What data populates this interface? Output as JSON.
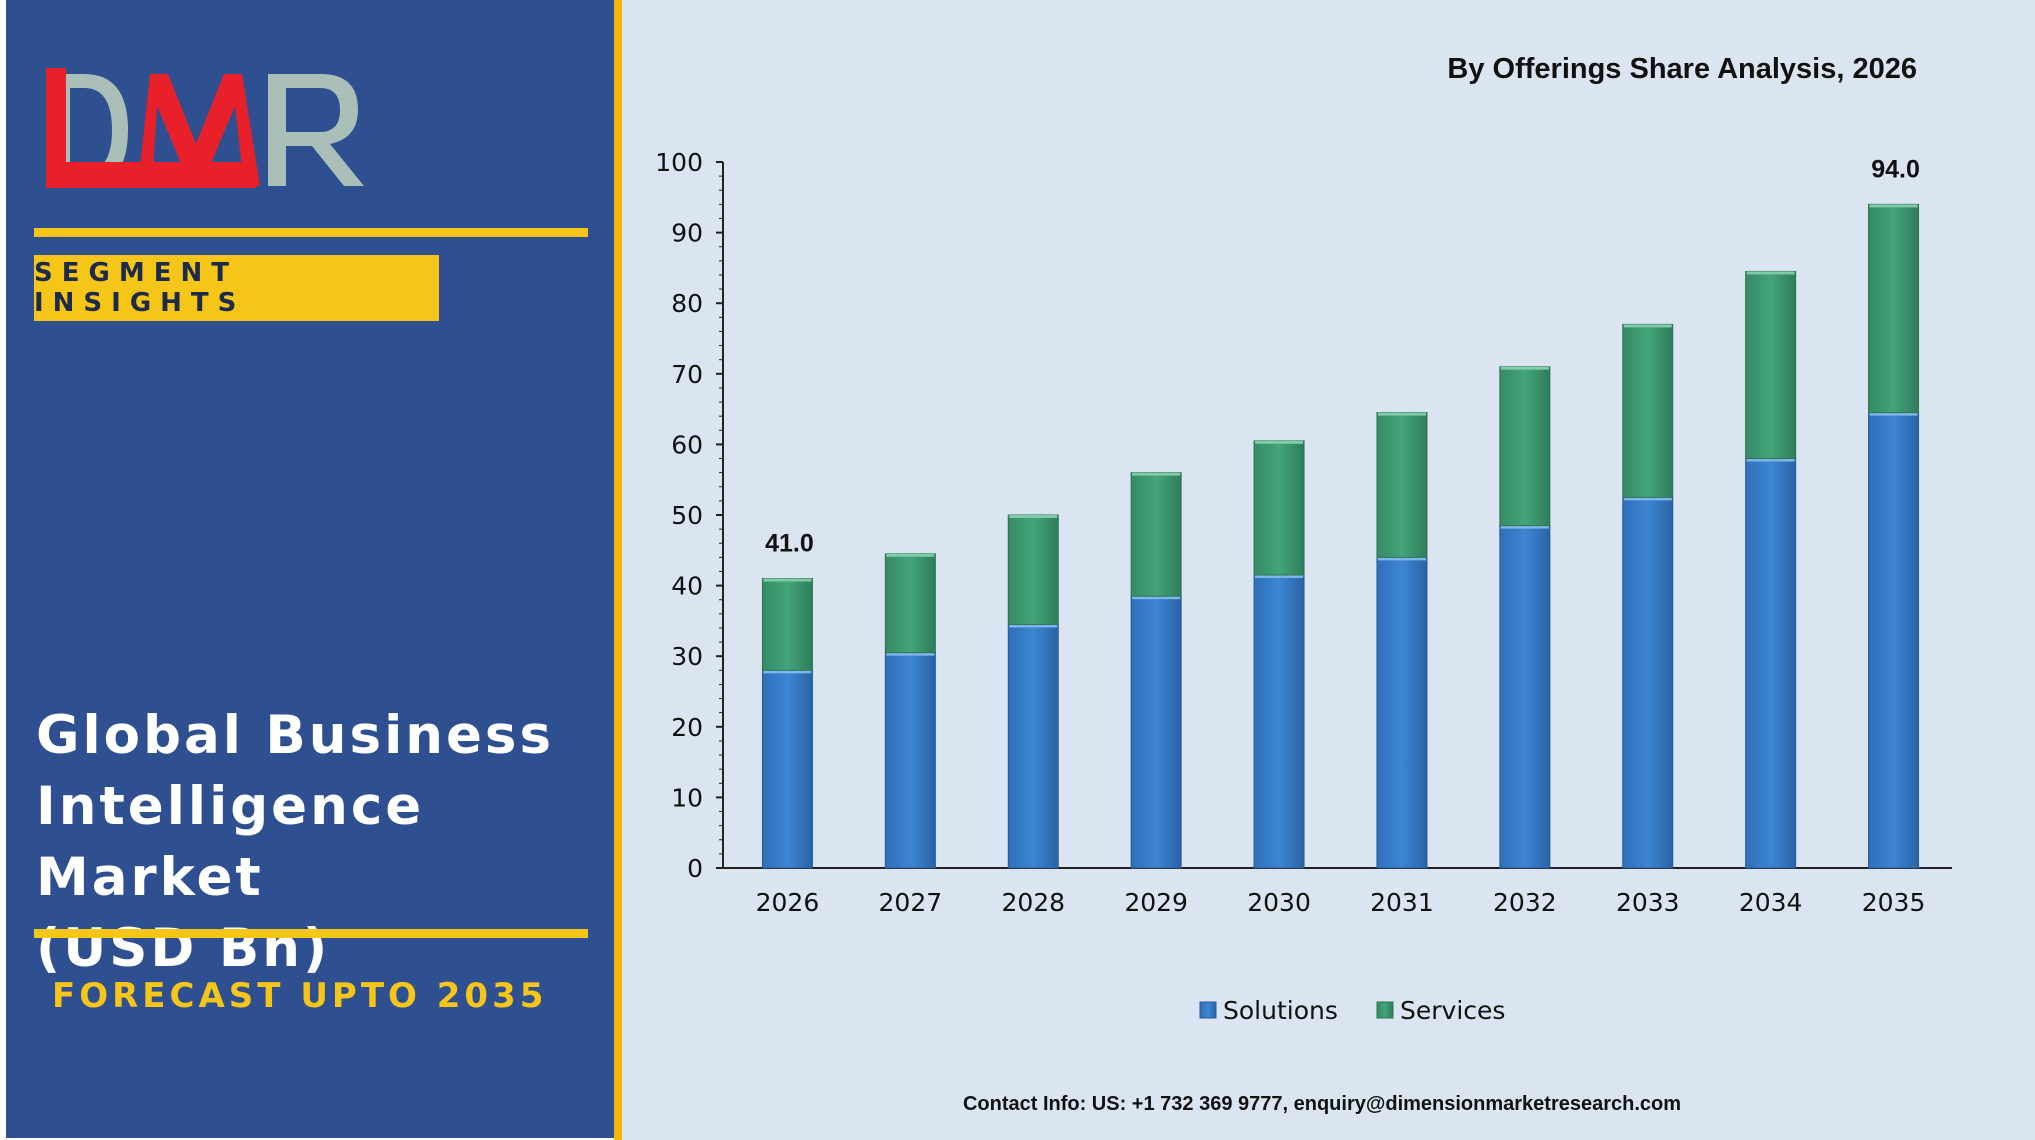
{
  "brand": {
    "logo_text": "DMR",
    "badge": "SEGMENT INSIGHTS",
    "title_lines": [
      "Global Business",
      "Intelligence Market",
      "(USD Bn)"
    ],
    "forecast": "FORECAST UPTO 2035"
  },
  "colors": {
    "left_panel": "#2e5090",
    "gold": "#f5c518",
    "chart_bg": "#dbe5f1",
    "solutions": "#3a7dc9",
    "services": "#3d9a72",
    "logo_red": "#e8202a",
    "logo_gray": "#a9bfb8"
  },
  "contact": "Contact Info: US: +1 732 369 9777, enquiry@dimensionmarketresearch.com",
  "chart_data": {
    "type": "bar",
    "stacked": true,
    "title": "By Offerings Share Analysis, 2026",
    "categories": [
      "2026",
      "2027",
      "2028",
      "2029",
      "2030",
      "2031",
      "2032",
      "2033",
      "2034",
      "2035"
    ],
    "series": [
      {
        "name": "Solutions",
        "values": [
          28.0,
          30.5,
          34.5,
          38.5,
          41.5,
          44.0,
          48.5,
          52.5,
          58.0,
          64.5
        ]
      },
      {
        "name": "Services",
        "values": [
          13.0,
          14.0,
          15.5,
          17.5,
          19.0,
          20.5,
          22.5,
          24.5,
          26.5,
          29.5
        ]
      }
    ],
    "data_labels": [
      {
        "category": "2026",
        "text": "41.0"
      },
      {
        "category": "2035",
        "text": "94.0"
      }
    ],
    "ylim": [
      0,
      100
    ],
    "yticks": [
      0,
      10,
      20,
      30,
      40,
      50,
      60,
      70,
      80,
      90,
      100
    ],
    "xlabel": "",
    "ylabel": "",
    "legend": "bottom",
    "grid": false
  }
}
